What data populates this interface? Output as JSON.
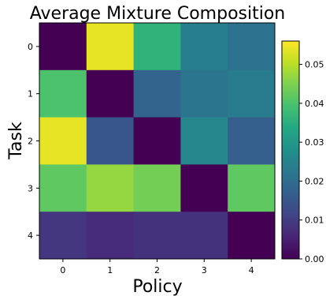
{
  "chart_data": {
    "type": "heatmap",
    "title": "Average Mixture Composition",
    "xlabel": "Policy",
    "ylabel": "Task",
    "x_categories": [
      "0",
      "1",
      "2",
      "3",
      "4"
    ],
    "y_categories": [
      "0",
      "1",
      "2",
      "3",
      "4"
    ],
    "values": [
      [
        0.0,
        0.054,
        0.036,
        0.024,
        0.021
      ],
      [
        0.04,
        0.0,
        0.018,
        0.022,
        0.023
      ],
      [
        0.054,
        0.015,
        0.0,
        0.026,
        0.017
      ],
      [
        0.042,
        0.047,
        0.044,
        0.0,
        0.042
      ],
      [
        0.009,
        0.007,
        0.008,
        0.008,
        0.0
      ]
    ],
    "colorbar": {
      "range": [
        0.0,
        0.056
      ],
      "ticks": [
        "0.00",
        "0.01",
        "0.02",
        "0.03",
        "0.04",
        "0.05"
      ],
      "colormap": "viridis"
    }
  }
}
